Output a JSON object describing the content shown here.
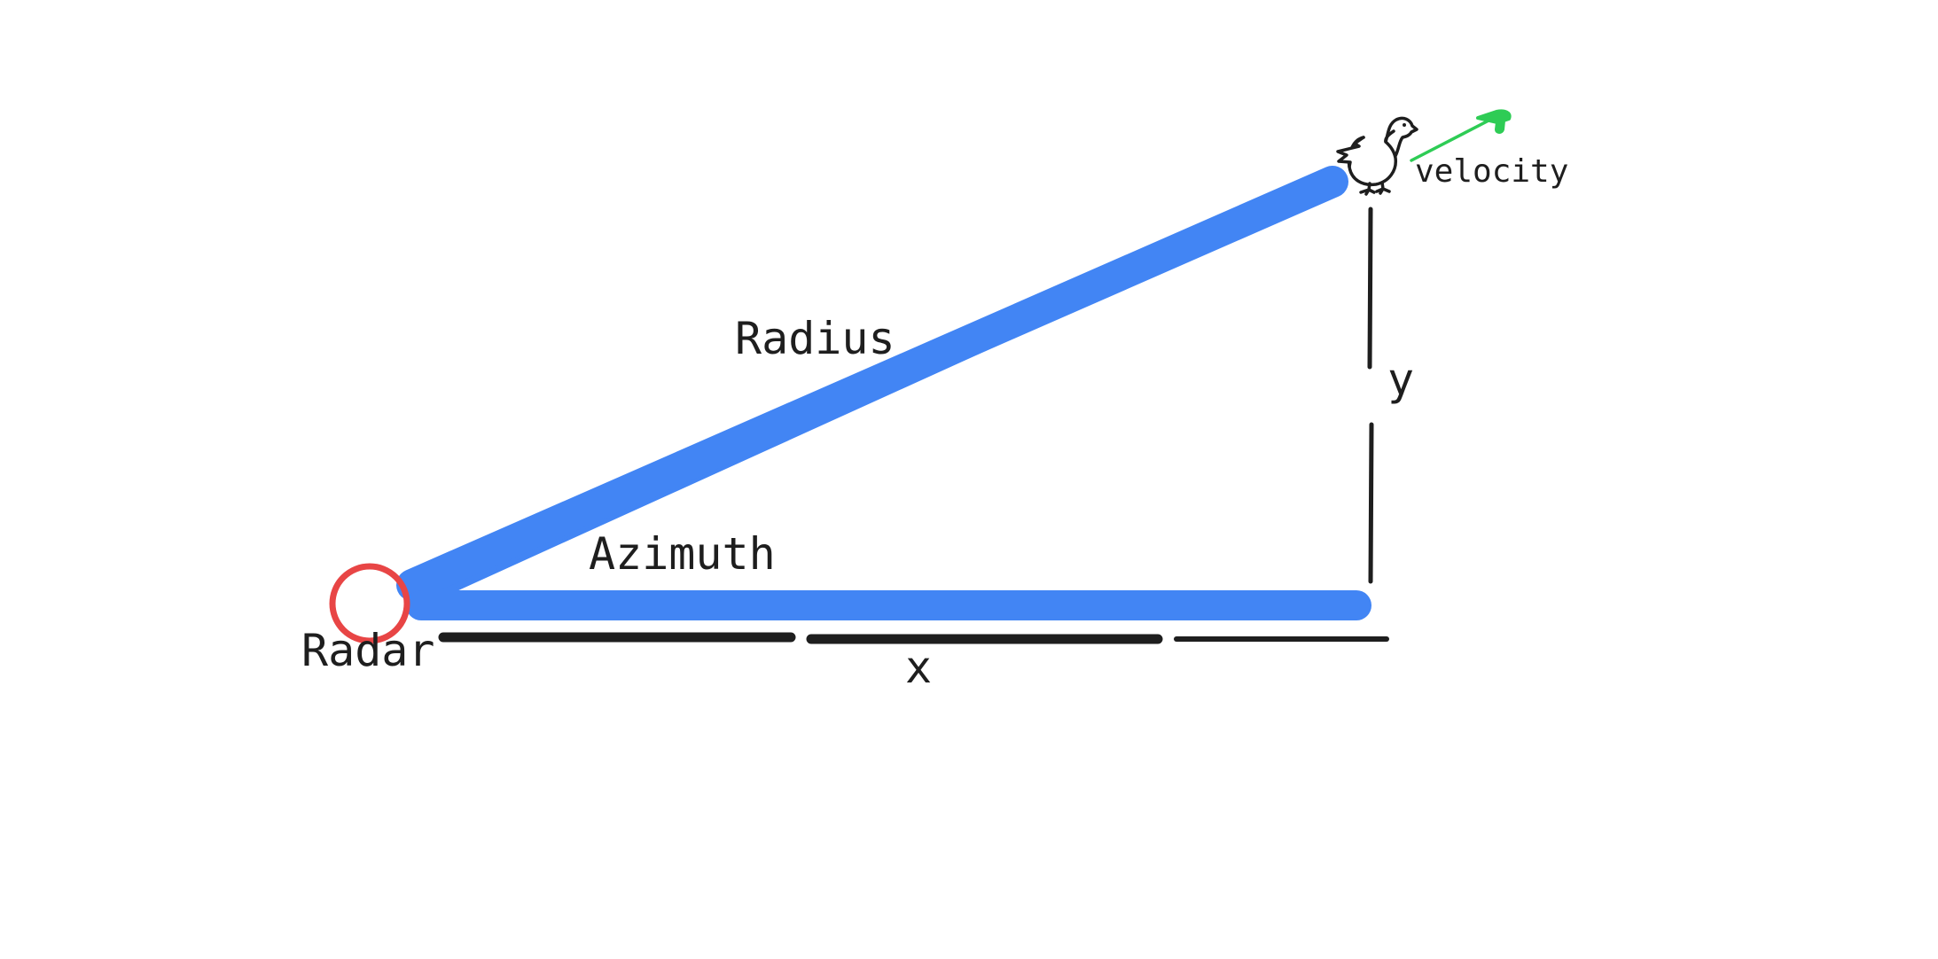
{
  "diagram": {
    "labels": {
      "radar": "Radar",
      "azimuth": "Azimuth",
      "radius": "Radius",
      "x": "x",
      "y": "y",
      "velocity": "velocity"
    },
    "icons": {
      "target": "bird-icon",
      "radar": "radar-circle-icon",
      "velocity": "velocity-arrow-icon"
    },
    "colors": {
      "radius_line": "#4285f4",
      "azimuth_line": "#4285f4",
      "radar_circle": "#e84545",
      "velocity_arrow": "#2ecc55",
      "ink": "#1e1e1e"
    }
  }
}
